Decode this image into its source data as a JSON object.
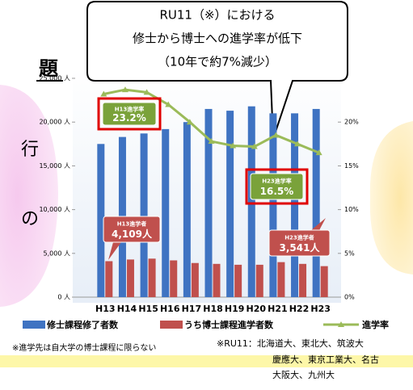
{
  "chart_data": {
    "type": "bar",
    "categories": [
      "H13",
      "H14",
      "H15",
      "H16",
      "H17",
      "H18",
      "H19",
      "H20",
      "H21",
      "H22",
      "H23"
    ],
    "series": [
      {
        "name": "修士課程修了者数",
        "color": "#3f73c2",
        "values": [
          17500,
          18300,
          18700,
          19200,
          20000,
          21500,
          21300,
          21800,
          21000,
          21000,
          21500
        ]
      },
      {
        "name": "うち博士課程進学者数",
        "color": "#c0504d",
        "values": [
          4109,
          4300,
          4400,
          4200,
          3900,
          3800,
          3700,
          3700,
          4000,
          3800,
          3541
        ]
      },
      {
        "name": "進学率",
        "color": "#9bbb59",
        "type": "line",
        "axis": "y2",
        "values": [
          23.2,
          23.7,
          23.4,
          22,
          20,
          17.8,
          17.3,
          17.2,
          18.5,
          17.5,
          16.5
        ]
      }
    ],
    "ylim": [
      0,
      25000
    ],
    "yticks": [
      {
        "value": 0,
        "label": "0 人"
      },
      {
        "value": 5000,
        "label": "5,000 人"
      },
      {
        "value": 10000,
        "label": "10,000 人"
      },
      {
        "value": 15000,
        "label": "15,000 人"
      },
      {
        "value": 20000,
        "label": "20,000 人"
      },
      {
        "value": 25000,
        "label": "25,000 人"
      }
    ],
    "y2lim": [
      0,
      25
    ],
    "y2ticks": [
      {
        "value": 0,
        "label": "0%"
      },
      {
        "value": 5,
        "label": "5%"
      },
      {
        "value": 10,
        "label": "10%"
      },
      {
        "value": 15,
        "label": "15%"
      },
      {
        "value": 20,
        "label": "20%"
      }
    ],
    "callout": [
      "RU11（※）における",
      "修士から博士への進学率が低下",
      "（10年で約7%減少）"
    ],
    "annotations": [
      {
        "lines": [
          "H13進学率",
          "23.2%"
        ]
      },
      {
        "lines": [
          "H23進学率",
          "16.5%"
        ]
      },
      {
        "lines": [
          "H13進学者",
          "4,109人"
        ]
      },
      {
        "lines": [
          "H23進学者",
          "3,541人"
        ]
      }
    ]
  },
  "page": {
    "fragments": [
      "題",
      "行",
      "の"
    ],
    "notes": [
      "※進学先は自大学の博士課程に限らない",
      "※RU11：北海道大、東北大、筑波大",
      "慶應大、東京工業大、名古",
      "大阪大、九州大"
    ]
  }
}
